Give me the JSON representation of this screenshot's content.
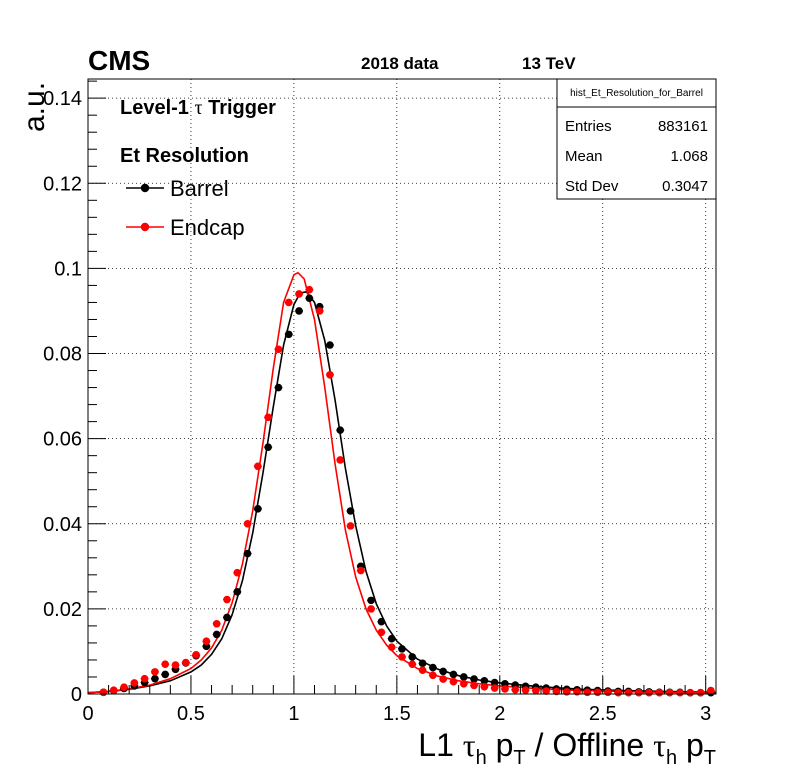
{
  "chart_data": {
    "type": "scatter",
    "experiment": "CMS",
    "dataset": "2018 data",
    "energy": "13 TeV",
    "title_line1_prefix": "Level-1 ",
    "title_line1_symbol": "τ",
    "title_line1_suffix": " Trigger",
    "title_line2": "Et Resolution",
    "ylabel": "a.u.",
    "xlabel": {
      "part1": "L1 ",
      "tau1": "τ",
      "sub_h1": "h",
      "p1": " p",
      "sub_T1": "T",
      "mid": " / Offline ",
      "tau2": "τ",
      "sub_h2": "h",
      "p2": " p",
      "sub_T2": "T"
    },
    "xlim": [
      0,
      3.05
    ],
    "ylim": [
      0,
      0.1445
    ],
    "x_ticks": [
      0,
      0.5,
      1,
      1.5,
      2,
      2.5,
      3
    ],
    "x_tick_labels": [
      "0",
      "0.5",
      "1",
      "1.5",
      "2",
      "2.5",
      "3"
    ],
    "y_ticks": [
      0,
      0.02,
      0.04,
      0.06,
      0.08,
      0.1,
      0.12,
      0.14
    ],
    "y_tick_labels": [
      "0",
      "0.02",
      "0.04",
      "0.06",
      "0.08",
      "0.1",
      "0.12",
      "0.14"
    ],
    "grid": true,
    "stats_box": {
      "name": "hist_Et_Resolution_for_Barrel",
      "rows": [
        {
          "label": "Entries",
          "value": "883161"
        },
        {
          "label": "Mean",
          "value": "1.068"
        },
        {
          "label": "Std Dev",
          "value": "0.3047"
        }
      ]
    },
    "legend_position": "top-left",
    "series": [
      {
        "name": "Barrel",
        "color": "#000000",
        "x": [
          0.075,
          0.125,
          0.175,
          0.225,
          0.275,
          0.325,
          0.375,
          0.425,
          0.475,
          0.525,
          0.575,
          0.625,
          0.675,
          0.725,
          0.775,
          0.825,
          0.875,
          0.925,
          0.975,
          1.025,
          1.075,
          1.125,
          1.175,
          1.225,
          1.275,
          1.325,
          1.375,
          1.425,
          1.475,
          1.525,
          1.575,
          1.625,
          1.675,
          1.725,
          1.775,
          1.825,
          1.875,
          1.925,
          1.975,
          2.025,
          2.075,
          2.125,
          2.175,
          2.225,
          2.275,
          2.325,
          2.375,
          2.425,
          2.475,
          2.525,
          2.575,
          2.625,
          2.675,
          2.725,
          2.775,
          2.825,
          2.875,
          2.925,
          2.975,
          3.025
        ],
        "values": [
          0.0004,
          0.0008,
          0.0013,
          0.0019,
          0.0027,
          0.0036,
          0.0046,
          0.0058,
          0.0073,
          0.009,
          0.0112,
          0.014,
          0.018,
          0.024,
          0.033,
          0.0435,
          0.058,
          0.072,
          0.0845,
          0.09,
          0.093,
          0.091,
          0.082,
          0.062,
          0.043,
          0.03,
          0.022,
          0.017,
          0.013,
          0.0106,
          0.0087,
          0.0072,
          0.0062,
          0.0053,
          0.0046,
          0.004,
          0.0035,
          0.0031,
          0.0027,
          0.0024,
          0.0021,
          0.0018,
          0.0016,
          0.0014,
          0.0012,
          0.0011,
          0.001,
          0.0009,
          0.0008,
          0.0007,
          0.0006,
          0.0006,
          0.0005,
          0.0005,
          0.0004,
          0.0004,
          0.0004,
          0.0003,
          0.0003,
          0.0003
        ],
        "fit": {
          "x": [
            0.0,
            0.1,
            0.2,
            0.3,
            0.4,
            0.5,
            0.55,
            0.6,
            0.65,
            0.7,
            0.75,
            0.8,
            0.85,
            0.9,
            0.95,
            1.0,
            1.03,
            1.06,
            1.1,
            1.15,
            1.2,
            1.25,
            1.3,
            1.35,
            1.4,
            1.45,
            1.5,
            1.6,
            1.7,
            1.8,
            1.9,
            2.0,
            2.2,
            2.4,
            2.6,
            2.8,
            3.05
          ],
          "values": [
            0.0003,
            0.0006,
            0.0011,
            0.0019,
            0.0031,
            0.0052,
            0.0068,
            0.0093,
            0.013,
            0.0186,
            0.0266,
            0.0378,
            0.052,
            0.0675,
            0.082,
            0.0915,
            0.0942,
            0.0945,
            0.092,
            0.083,
            0.069,
            0.053,
            0.0395,
            0.0288,
            0.0212,
            0.016,
            0.0124,
            0.0082,
            0.0058,
            0.0043,
            0.0033,
            0.0026,
            0.0017,
            0.0011,
            0.0008,
            0.0006,
            0.0004
          ]
        }
      },
      {
        "name": "Endcap",
        "color": "#ff0000",
        "x": [
          0.075,
          0.125,
          0.175,
          0.225,
          0.275,
          0.325,
          0.375,
          0.425,
          0.475,
          0.525,
          0.575,
          0.625,
          0.675,
          0.725,
          0.775,
          0.825,
          0.875,
          0.925,
          0.975,
          1.025,
          1.075,
          1.125,
          1.175,
          1.225,
          1.275,
          1.325,
          1.375,
          1.425,
          1.475,
          1.525,
          1.575,
          1.625,
          1.675,
          1.725,
          1.775,
          1.825,
          1.875,
          1.925,
          1.975,
          2.025,
          2.075,
          2.125,
          2.175,
          2.225,
          2.275,
          2.325,
          2.375,
          2.425,
          2.475,
          2.525,
          2.575,
          2.625,
          2.675,
          2.725,
          2.775,
          2.825,
          2.875,
          2.925,
          2.975,
          3.025
        ],
        "values": [
          0.0004,
          0.0009,
          0.0016,
          0.0026,
          0.0036,
          0.0052,
          0.007,
          0.0068,
          0.0074,
          0.0092,
          0.0124,
          0.0165,
          0.0222,
          0.0285,
          0.04,
          0.0535,
          0.065,
          0.081,
          0.092,
          0.094,
          0.095,
          0.09,
          0.075,
          0.055,
          0.0395,
          0.029,
          0.02,
          0.0145,
          0.011,
          0.0087,
          0.007,
          0.0056,
          0.0044,
          0.0035,
          0.0029,
          0.0024,
          0.002,
          0.0017,
          0.0014,
          0.0012,
          0.001,
          0.0009,
          0.0008,
          0.0007,
          0.0006,
          0.0005,
          0.0005,
          0.0004,
          0.0004,
          0.0004,
          0.0003,
          0.0003,
          0.0003,
          0.0003,
          0.0003,
          0.0003,
          0.0003,
          0.0003,
          0.0003,
          0.0008
        ],
        "fit": {
          "x": [
            0.0,
            0.1,
            0.2,
            0.3,
            0.4,
            0.5,
            0.55,
            0.6,
            0.65,
            0.7,
            0.75,
            0.8,
            0.85,
            0.9,
            0.95,
            1.0,
            1.02,
            1.05,
            1.1,
            1.15,
            1.2,
            1.25,
            1.3,
            1.35,
            1.4,
            1.45,
            1.5,
            1.6,
            1.7,
            1.8,
            1.9,
            2.0,
            2.2,
            2.4,
            2.6,
            2.8,
            3.05
          ],
          "values": [
            0.0003,
            0.0006,
            0.0012,
            0.0021,
            0.0036,
            0.006,
            0.008,
            0.0108,
            0.015,
            0.0214,
            0.0305,
            0.043,
            0.059,
            0.0765,
            0.092,
            0.0985,
            0.099,
            0.0975,
            0.088,
            0.072,
            0.054,
            0.0385,
            0.0275,
            0.02,
            0.015,
            0.0115,
            0.009,
            0.006,
            0.0042,
            0.0031,
            0.0024,
            0.0019,
            0.0012,
            0.0008,
            0.0006,
            0.0004,
            0.0003
          ]
        }
      }
    ]
  }
}
